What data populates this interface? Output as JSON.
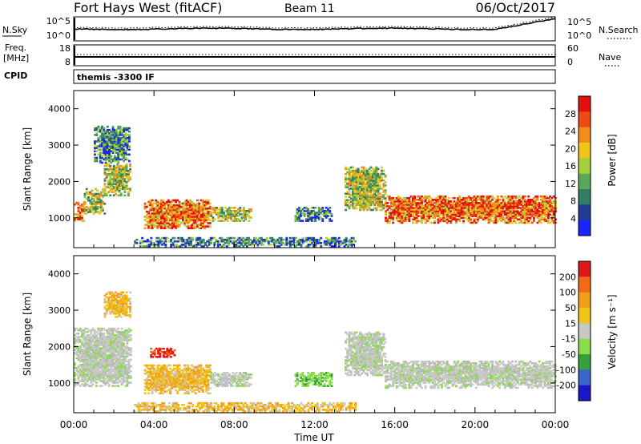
{
  "header": {
    "radar": "Fort Hays West (fitACF)",
    "beam": "Beam 11",
    "date": "06/Oct/2017"
  },
  "summary_panels": {
    "nsky_label": "N.Sky",
    "nsky_ticks": [
      "10^5",
      "10^0"
    ],
    "nsearch_label": "N.Search",
    "nsearch_ticks": [
      "10^5",
      "10^0"
    ],
    "freq_label_line1": "Freq.",
    "freq_label_line2": "[MHz]",
    "freq_ticks": [
      "18",
      "8"
    ],
    "nave_label": "Nave",
    "nave_ticks": [
      "60",
      "0"
    ],
    "cpid_label": "CPID",
    "cpid_value": "themis -3300 IF"
  },
  "chart_data": [
    {
      "type": "heatmap",
      "name": "power",
      "ylabel": "Slant Range [km]",
      "ylim": [
        180,
        4500
      ],
      "yticks": [
        "1000",
        "2000",
        "3000",
        "4000"
      ],
      "xlim": [
        "00:00",
        "24:00"
      ],
      "colorbar": {
        "label": "Power [dB]",
        "ticks": [
          "28",
          "24",
          "20",
          "16",
          "12",
          "8",
          "4"
        ],
        "colors": [
          "#1a24ff",
          "#203c94",
          "#2f7f64",
          "#5aa85a",
          "#a6d03a",
          "#f2c418",
          "#f28c1a",
          "#ee4a14",
          "#e50f10"
        ]
      },
      "regions": [
        {
          "t": [
            0.0,
            0.5
          ],
          "r": [
            900,
            1400
          ],
          "level": "high"
        },
        {
          "t": [
            0.5,
            1.5
          ],
          "r": [
            1100,
            1800
          ],
          "level": "mid"
        },
        {
          "t": [
            1.5,
            2.8
          ],
          "r": [
            1600,
            2500
          ],
          "level": "mid"
        },
        {
          "t": [
            1.0,
            2.8
          ],
          "r": [
            2500,
            3500
          ],
          "level": "low"
        },
        {
          "t": [
            3.5,
            6.8
          ],
          "r": [
            700,
            1500
          ],
          "level": "high"
        },
        {
          "t": [
            6.8,
            8.8
          ],
          "r": [
            900,
            1300
          ],
          "level": "mid"
        },
        {
          "t": [
            11.0,
            12.8
          ],
          "r": [
            900,
            1300
          ],
          "level": "low"
        },
        {
          "t": [
            13.5,
            15.5
          ],
          "r": [
            1200,
            2400
          ],
          "level": "mid"
        },
        {
          "t": [
            15.5,
            24.0
          ],
          "r": [
            850,
            1600
          ],
          "level": "high"
        },
        {
          "t": [
            3.0,
            14.0
          ],
          "r": [
            200,
            450
          ],
          "level": "low"
        }
      ]
    },
    {
      "type": "heatmap",
      "name": "velocity",
      "ylabel": "Slant Range [km]",
      "ylim": [
        180,
        4500
      ],
      "yticks": [
        "1000",
        "2000",
        "3000",
        "4000"
      ],
      "xlabel": "Time UT",
      "xticks": [
        "00:00",
        "04:00",
        "08:00",
        "12:00",
        "16:00",
        "20:00",
        "00:00"
      ],
      "colorbar": {
        "label": "Velocity [m s⁻¹]",
        "ticks": [
          "200",
          "100",
          "50",
          "15",
          "-15",
          "-50",
          "-100",
          "-200"
        ],
        "colors": [
          "#1818c8",
          "#3a64c8",
          "#36a03a",
          "#8adc4a",
          "#c8c8c8",
          "#f2c418",
          "#f2a018",
          "#f26a18",
          "#e11818"
        ]
      },
      "regions": [
        {
          "t": [
            0.0,
            2.8
          ],
          "r": [
            900,
            2500
          ],
          "level": "ground"
        },
        {
          "t": [
            1.5,
            2.8
          ],
          "r": [
            2800,
            3500
          ],
          "level": "west"
        },
        {
          "t": [
            3.5,
            6.8
          ],
          "r": [
            700,
            1500
          ],
          "level": "west"
        },
        {
          "t": [
            3.8,
            5.0
          ],
          "r": [
            1700,
            1950
          ],
          "level": "strongwest"
        },
        {
          "t": [
            6.8,
            8.8
          ],
          "r": [
            900,
            1300
          ],
          "level": "ground"
        },
        {
          "t": [
            11.0,
            12.8
          ],
          "r": [
            900,
            1300
          ],
          "level": "east"
        },
        {
          "t": [
            13.5,
            15.5
          ],
          "r": [
            1200,
            2400
          ],
          "level": "ground"
        },
        {
          "t": [
            15.5,
            24.0
          ],
          "r": [
            850,
            1600
          ],
          "level": "ground"
        },
        {
          "t": [
            3.0,
            14.0
          ],
          "r": [
            200,
            450
          ],
          "level": "west"
        }
      ]
    }
  ]
}
